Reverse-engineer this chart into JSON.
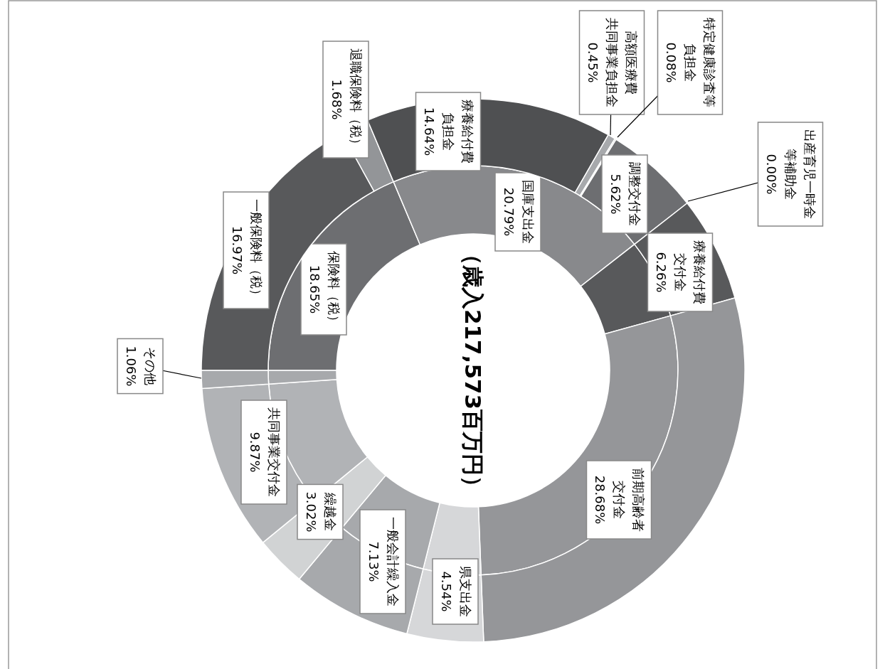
{
  "chart_data": [
    {
      "type": "donut",
      "title": "（歳入217,573百万円）",
      "categories": [
        "一般保険料（税）",
        "退職保険料（税）",
        "療養給付費負担金",
        "高額医療費共同事業負担金",
        "特定健康診査等負担金",
        "調整交付金",
        "出産育児一時金等補助金",
        "療養給付費交付金",
        "前期高齢者交付金",
        "県支出金",
        "一般会計繰入金",
        "繰越金",
        "共同事業交付金",
        "その他"
      ],
      "values": [
        16.97,
        1.68,
        14.64,
        0.45,
        0.08,
        5.62,
        0.0,
        6.26,
        28.68,
        4.54,
        7.13,
        3.02,
        9.87,
        1.06
      ],
      "value_labels": [
        "16.97%",
        "1.68%",
        "14.64%",
        "0.45%",
        "0.08%",
        "5.62%",
        "0.00%",
        "6.26%",
        "28.68%",
        "4.54%",
        "7.13%",
        "3.02%",
        "9.87%",
        "1.06%"
      ],
      "colors": [
        "#58595b",
        "#939598",
        "#4f5052",
        "#a7a9ac",
        "#bcbec0",
        "#6d6e71",
        "#808285",
        "#58595b",
        "#959699",
        "#d6d7d9",
        "#a7a9ac",
        "#d1d3d4",
        "#b1b3b6",
        "#a7a9ac"
      ]
    },
    {
      "type": "donut",
      "categories": [
        "保険料（税）",
        "国庫支出金",
        null,
        null,
        null,
        null,
        null,
        null,
        null
      ],
      "values": [
        18.65,
        20.79,
        6.26,
        28.68,
        4.54,
        7.13,
        3.02,
        9.87,
        1.06
      ],
      "value_labels": [
        "18.65%",
        "20.79%",
        null,
        null,
        null,
        null,
        null,
        null,
        null
      ],
      "colors": [
        "#6d6e71",
        "#88898c",
        "#58595b",
        "#959699",
        "#d6d7d9",
        "#a7a9ac",
        "#d1d3d4",
        "#b1b3b6",
        "#a7a9ac"
      ]
    }
  ]
}
